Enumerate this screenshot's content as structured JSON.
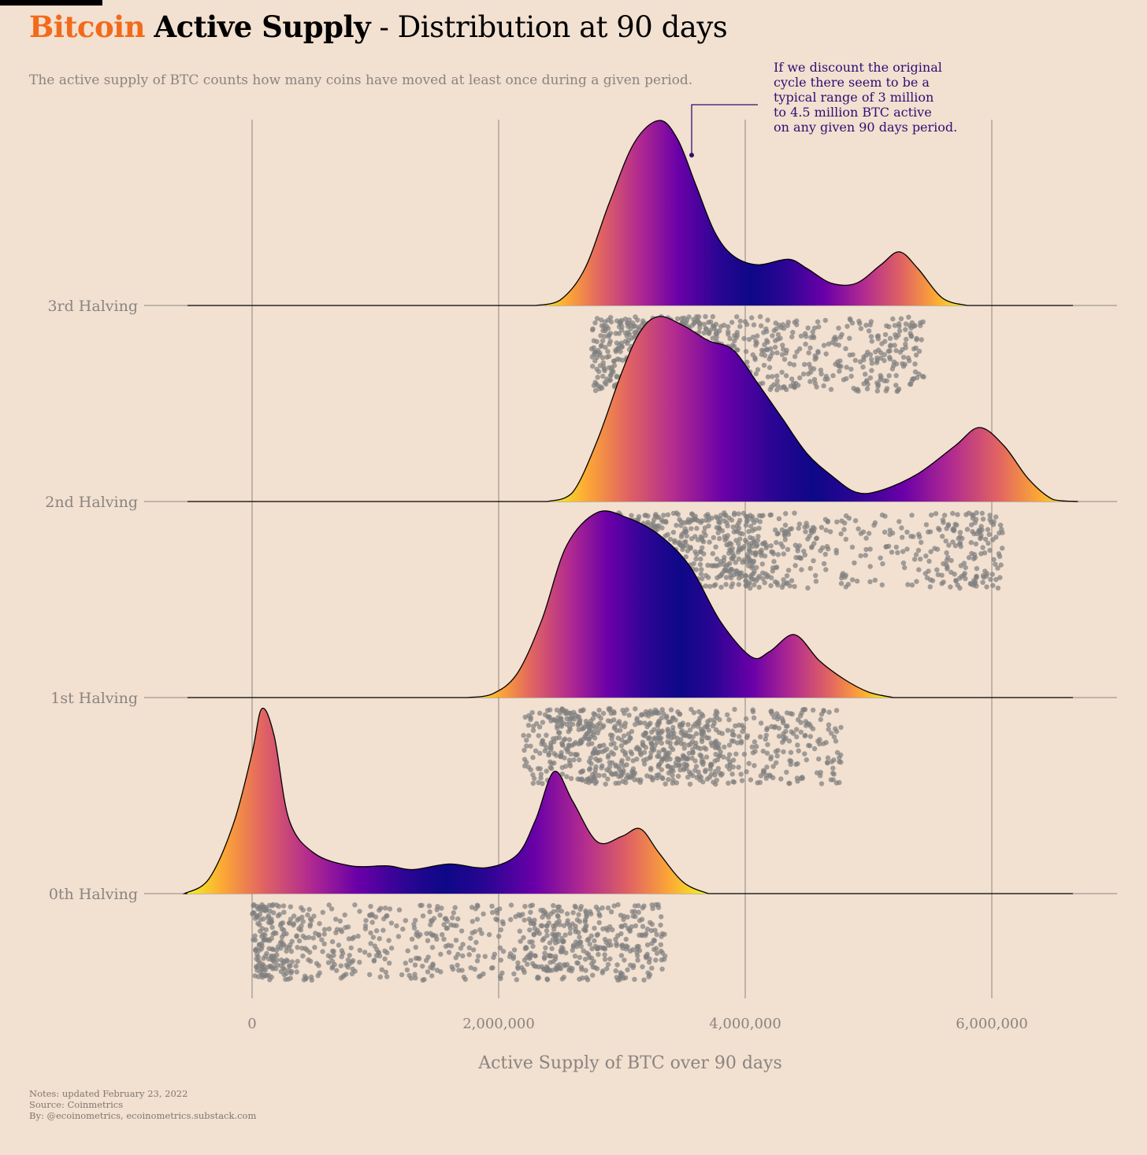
{
  "header": {
    "title_brand": "Bitcoin",
    "title_bold": "Active Supply",
    "title_rest": " - Distribution at 90 days",
    "subtitle": "The active supply of BTC counts how many coins have moved at least once during a given period."
  },
  "annotation": {
    "lines": [
      "If we discount the original",
      "cycle there seem to be a",
      "typical range of 3 million",
      "to 4.5 million BTC active",
      "on any given 90 days period."
    ],
    "color": "#2c0f73"
  },
  "notes": {
    "line1": "Notes: updated February 23, 2022",
    "line2": "Source: Coinmetrics",
    "line3": "By: @ecoinometrics, ecoinometrics.substack.com"
  },
  "colors": {
    "background": "#f2e0d0",
    "brand": "#f26a1b",
    "points": "#7f7f7f",
    "palette": "plasma"
  },
  "chart_data": {
    "type": "ridgeline",
    "xlabel": "Active Supply of BTC over 90 days",
    "xlim": [
      -600000,
      7000000
    ],
    "x_ticks": [
      0,
      2000000,
      4000000,
      6000000
    ],
    "x_tick_labels": [
      "0",
      "2,000,000",
      "4,000,000",
      "6,000,000"
    ],
    "grid": true,
    "series": [
      {
        "name": "3rd Halving",
        "range": [
          2750000,
          5450000
        ],
        "density": [
          [
            2300000,
            0
          ],
          [
            2500000,
            0.03
          ],
          [
            2700000,
            0.2
          ],
          [
            2900000,
            0.56
          ],
          [
            3100000,
            0.88
          ],
          [
            3300000,
            1.0
          ],
          [
            3450000,
            0.9
          ],
          [
            3600000,
            0.65
          ],
          [
            3750000,
            0.4
          ],
          [
            3900000,
            0.27
          ],
          [
            4100000,
            0.22
          ],
          [
            4350000,
            0.25
          ],
          [
            4500000,
            0.2
          ],
          [
            4700000,
            0.12
          ],
          [
            4900000,
            0.12
          ],
          [
            5100000,
            0.22
          ],
          [
            5250000,
            0.29
          ],
          [
            5400000,
            0.2
          ],
          [
            5600000,
            0.04
          ],
          [
            5800000,
            0
          ]
        ]
      },
      {
        "name": "2nd Halving",
        "range": [
          2850000,
          6100000
        ],
        "density": [
          [
            2400000,
            0
          ],
          [
            2600000,
            0.05
          ],
          [
            2800000,
            0.33
          ],
          [
            3000000,
            0.7
          ],
          [
            3150000,
            0.92
          ],
          [
            3300000,
            1.0
          ],
          [
            3500000,
            0.95
          ],
          [
            3700000,
            0.87
          ],
          [
            3900000,
            0.82
          ],
          [
            4100000,
            0.64
          ],
          [
            4300000,
            0.45
          ],
          [
            4500000,
            0.26
          ],
          [
            4700000,
            0.14
          ],
          [
            4900000,
            0.05
          ],
          [
            5100000,
            0.06
          ],
          [
            5400000,
            0.15
          ],
          [
            5700000,
            0.3
          ],
          [
            5900000,
            0.4
          ],
          [
            6100000,
            0.3
          ],
          [
            6300000,
            0.12
          ],
          [
            6500000,
            0.01
          ],
          [
            6700000,
            0
          ]
        ]
      },
      {
        "name": "1st Halving",
        "range": [
          2200000,
          4800000
        ],
        "density": [
          [
            1750000,
            0
          ],
          [
            1950000,
            0.02
          ],
          [
            2150000,
            0.13
          ],
          [
            2350000,
            0.42
          ],
          [
            2550000,
            0.82
          ],
          [
            2800000,
            1.0
          ],
          [
            3050000,
            0.97
          ],
          [
            3300000,
            0.88
          ],
          [
            3550000,
            0.71
          ],
          [
            3800000,
            0.41
          ],
          [
            4050000,
            0.22
          ],
          [
            4200000,
            0.25
          ],
          [
            4400000,
            0.34
          ],
          [
            4600000,
            0.2
          ],
          [
            4800000,
            0.1
          ],
          [
            5000000,
            0.03
          ],
          [
            5200000,
            0
          ]
        ]
      },
      {
        "name": "0th Halving",
        "range": [
          0,
          3350000
        ],
        "density": [
          [
            -550000,
            0
          ],
          [
            -350000,
            0.08
          ],
          [
            -150000,
            0.38
          ],
          [
            0,
            0.76
          ],
          [
            80000,
            1.0
          ],
          [
            180000,
            0.85
          ],
          [
            300000,
            0.4
          ],
          [
            500000,
            0.22
          ],
          [
            800000,
            0.15
          ],
          [
            1100000,
            0.15
          ],
          [
            1300000,
            0.13
          ],
          [
            1600000,
            0.16
          ],
          [
            1900000,
            0.14
          ],
          [
            2150000,
            0.21
          ],
          [
            2300000,
            0.4
          ],
          [
            2450000,
            0.66
          ],
          [
            2600000,
            0.5
          ],
          [
            2800000,
            0.28
          ],
          [
            3000000,
            0.31
          ],
          [
            3150000,
            0.35
          ],
          [
            3300000,
            0.22
          ],
          [
            3500000,
            0.06
          ],
          [
            3700000,
            0
          ]
        ]
      }
    ]
  }
}
